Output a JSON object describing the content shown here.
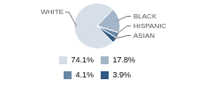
{
  "chart_data": {
    "type": "pie",
    "categories": [
      "WHITE",
      "BLACK",
      "HISPANIC",
      "ASIAN"
    ],
    "values": [
      74.1,
      17.8,
      4.1,
      3.9
    ],
    "value_labels": [
      "74.1%",
      "17.8%",
      "4.1%",
      "3.9%"
    ],
    "colors": [
      "#d6dfe8",
      "#a3b5c8",
      "#6a88a6",
      "#2f5a80"
    ],
    "legend": "bottom"
  }
}
